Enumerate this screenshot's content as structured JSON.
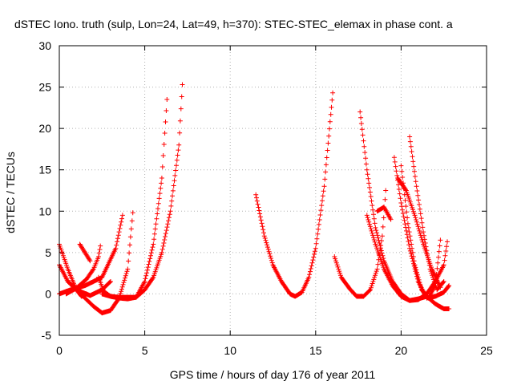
{
  "chart_data": {
    "type": "scatter",
    "title": "dSTEC Iono. truth (sulp, Lon=24, Lat=49, h=370): STEC-STEC_elemax in phase cont. a",
    "xlabel": "GPS time / hours of day 176 of year 2011",
    "ylabel": "dSTEC  / TECUs",
    "xlim": [
      0,
      25
    ],
    "ylim": [
      -5,
      30
    ],
    "xticks": [
      0,
      5,
      10,
      15,
      20,
      25
    ],
    "yticks": [
      -5,
      0,
      5,
      10,
      15,
      20,
      25,
      30
    ],
    "grid": true,
    "marker": "plus",
    "color": "#ff0000",
    "series": [
      {
        "x": [
          0.0,
          0.5,
          1.0,
          1.3,
          1.6
        ],
        "y": [
          6.0,
          3.0,
          0.5,
          -0.3,
          0.0
        ]
      },
      {
        "x": [
          0.0,
          0.8,
          1.5,
          2.5,
          3.3,
          3.7
        ],
        "y": [
          0.0,
          0.6,
          1.0,
          2.0,
          5.5,
          9.5
        ]
      },
      {
        "x": [
          1.2,
          1.5,
          1.8
        ],
        "y": [
          6.0,
          5.0,
          4.0
        ]
      },
      {
        "x": [
          0.0,
          0.5,
          1.0,
          1.8,
          2.5,
          3.0
        ],
        "y": [
          3.5,
          1.5,
          0.5,
          -0.2,
          0.5,
          1.5
        ]
      },
      {
        "x": [
          0.4,
          1.0,
          1.6,
          2.0,
          2.3,
          2.4
        ],
        "y": [
          0.0,
          0.7,
          1.8,
          3.0,
          4.5,
          5.8
        ]
      },
      {
        "x": [
          0.5,
          1.0,
          1.5,
          2.0,
          2.5,
          3.0,
          3.5,
          4.0,
          4.3
        ],
        "y": [
          1.5,
          0.5,
          -0.5,
          -1.5,
          -2.3,
          -2.0,
          -0.5,
          3.0,
          9.8
        ]
      },
      {
        "x": [
          2.3,
          2.6,
          3.0,
          3.5,
          4.0,
          4.5,
          5.0,
          5.5,
          6.0,
          6.3
        ],
        "y": [
          2.0,
          0.3,
          -0.3,
          -0.4,
          -0.4,
          -0.4,
          1.5,
          6.0,
          14.0,
          23.5
        ]
      },
      {
        "x": [
          2.5,
          3.0,
          3.5,
          4.0,
          4.5,
          5.0,
          5.5,
          6.0,
          6.5,
          7.0,
          7.2
        ],
        "y": [
          0.0,
          -0.3,
          -0.5,
          -0.6,
          -0.4,
          0.5,
          2.0,
          5.0,
          10.0,
          18.0,
          25.3
        ]
      },
      {
        "x": [
          11.5,
          12.0,
          12.5,
          13.0,
          13.5,
          13.8,
          14.2,
          14.6,
          15.0,
          15.5,
          16.0
        ],
        "y": [
          12.0,
          7.0,
          3.5,
          1.5,
          0.0,
          -0.3,
          0.2,
          2.0,
          5.5,
          13.0,
          24.3
        ]
      },
      {
        "x": [
          16.1,
          16.5,
          17.0,
          17.4,
          17.8,
          18.2,
          18.6,
          18.9,
          19.1
        ],
        "y": [
          4.5,
          2.0,
          0.6,
          -0.3,
          -0.3,
          0.5,
          3.0,
          7.0,
          12.5
        ]
      },
      {
        "x": [
          17.6,
          18.0,
          18.5,
          19.0,
          19.5,
          20.0,
          20.5,
          21.0,
          21.5,
          22.0,
          22.5,
          22.7
        ],
        "y": [
          22.0,
          15.0,
          8.0,
          4.0,
          1.5,
          0.0,
          -0.8,
          -0.7,
          0.0,
          1.5,
          3.5,
          6.3
        ]
      },
      {
        "x": [
          18.0,
          18.5,
          19.0,
          19.5,
          20.0,
          20.5,
          21.0,
          21.5,
          22.0,
          22.5,
          22.8
        ],
        "y": [
          9.5,
          6.0,
          3.0,
          1.0,
          -0.3,
          -0.8,
          -0.6,
          -0.3,
          -1.2,
          -1.8,
          -1.8
        ]
      },
      {
        "x": [
          19.6,
          20.0,
          20.5,
          21.0,
          21.5,
          22.0,
          22.5,
          22.8
        ],
        "y": [
          16.5,
          11.0,
          5.5,
          1.5,
          -0.5,
          -0.3,
          0.2,
          1.0
        ]
      },
      {
        "x": [
          20.0,
          20.4,
          20.8,
          21.2,
          21.6,
          22.0,
          22.3
        ],
        "y": [
          15.5,
          8.5,
          3.5,
          0.5,
          -0.5,
          1.0,
          6.5
        ]
      },
      {
        "x": [
          20.5,
          20.9,
          21.3,
          21.7,
          22.1,
          22.5
        ],
        "y": [
          19.0,
          13.0,
          7.5,
          3.0,
          0.5,
          1.5
        ]
      },
      {
        "x": [
          18.6,
          19.0,
          19.4
        ],
        "y": [
          10.0,
          10.5,
          9.0
        ]
      },
      {
        "x": [
          19.8,
          20.3,
          20.8,
          21.3,
          21.8,
          22.3
        ],
        "y": [
          14.0,
          12.5,
          9.5,
          6.0,
          3.0,
          0.8
        ]
      }
    ]
  }
}
